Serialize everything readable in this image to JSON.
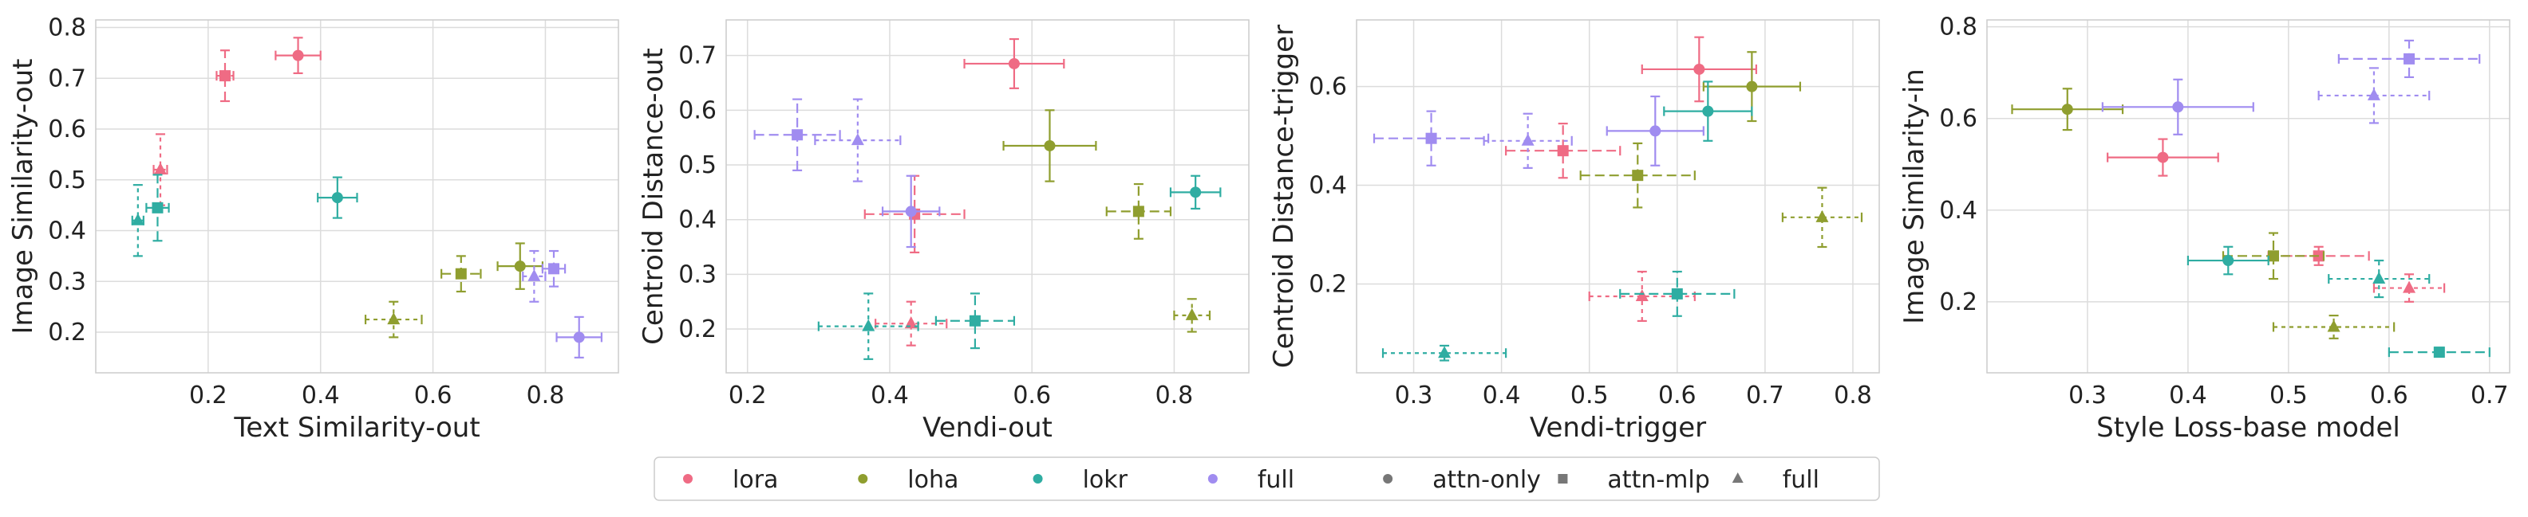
{
  "colors": {
    "lora": "#ef6b84",
    "loha": "#8f9e2f",
    "lokr": "#2fada2",
    "full": "#a08cf0",
    "neutral": "#777777"
  },
  "legend": {
    "entries": [
      {
        "label": "lora",
        "marker": "circle",
        "color_key": "lora"
      },
      {
        "label": "loha",
        "marker": "circle",
        "color_key": "loha"
      },
      {
        "label": "lokr",
        "marker": "circle",
        "color_key": "lokr"
      },
      {
        "label": "full",
        "marker": "circle",
        "color_key": "full"
      },
      {
        "label": "attn-only",
        "marker": "circle",
        "color_key": "neutral"
      },
      {
        "label": "attn-mlp",
        "marker": "square",
        "color_key": "neutral"
      },
      {
        "label": "full",
        "marker": "triangle",
        "color_key": "neutral"
      }
    ],
    "placement": "bottom-center"
  },
  "chart_data": [
    {
      "type": "scatter",
      "xlabel": "Text Similarity-out",
      "ylabel": "Image Similarity-out",
      "xlim": [
        0.0,
        0.93
      ],
      "ylim": [
        0.12,
        0.815
      ],
      "xticks": [
        "0.2",
        "0.4",
        "0.6",
        "0.8"
      ],
      "yticks": [
        "0.2",
        "0.3",
        "0.4",
        "0.5",
        "0.6",
        "0.7",
        "0.8"
      ],
      "grid": true,
      "points": [
        {
          "method": "lora",
          "marker": "circle",
          "x": 0.36,
          "y": 0.745,
          "xerr": 0.04,
          "yerr": 0.035
        },
        {
          "method": "lora",
          "marker": "square",
          "x": 0.23,
          "y": 0.705,
          "xerr": 0.015,
          "yerr": 0.05
        },
        {
          "method": "lora",
          "marker": "triangle",
          "x": 0.115,
          "y": 0.52,
          "xerr": 0.012,
          "yerr": 0.07
        },
        {
          "method": "loha",
          "marker": "circle",
          "x": 0.755,
          "y": 0.33,
          "xerr": 0.04,
          "yerr": 0.045
        },
        {
          "method": "loha",
          "marker": "square",
          "x": 0.65,
          "y": 0.315,
          "xerr": 0.035,
          "yerr": 0.035
        },
        {
          "method": "loha",
          "marker": "triangle",
          "x": 0.53,
          "y": 0.225,
          "xerr": 0.05,
          "yerr": 0.035
        },
        {
          "method": "lokr",
          "marker": "circle",
          "x": 0.43,
          "y": 0.465,
          "xerr": 0.035,
          "yerr": 0.04
        },
        {
          "method": "lokr",
          "marker": "square",
          "x": 0.11,
          "y": 0.445,
          "xerr": 0.02,
          "yerr": 0.065
        },
        {
          "method": "lokr",
          "marker": "triangle",
          "x": 0.075,
          "y": 0.42,
          "xerr": 0.01,
          "yerr": 0.07
        },
        {
          "method": "full",
          "marker": "circle",
          "x": 0.86,
          "y": 0.19,
          "xerr": 0.04,
          "yerr": 0.04
        },
        {
          "method": "full",
          "marker": "square",
          "x": 0.815,
          "y": 0.325,
          "xerr": 0.02,
          "yerr": 0.035
        },
        {
          "method": "full",
          "marker": "triangle",
          "x": 0.78,
          "y": 0.31,
          "xerr": 0.02,
          "yerr": 0.05
        }
      ]
    },
    {
      "type": "scatter",
      "xlabel": "Vendi-out",
      "ylabel": "Centroid Distance-out",
      "xlim": [
        0.17,
        0.905
      ],
      "ylim": [
        0.12,
        0.765
      ],
      "xticks": [
        "0.2",
        "0.4",
        "0.6",
        "0.8"
      ],
      "yticks": [
        "0.2",
        "0.3",
        "0.4",
        "0.5",
        "0.6",
        "0.7"
      ],
      "grid": true,
      "points": [
        {
          "method": "lora",
          "marker": "circle",
          "x": 0.575,
          "y": 0.685,
          "xerr": 0.07,
          "yerr": 0.045
        },
        {
          "method": "lora",
          "marker": "square",
          "x": 0.435,
          "y": 0.41,
          "xerr": 0.07,
          "yerr": 0.07
        },
        {
          "method": "lora",
          "marker": "triangle",
          "x": 0.43,
          "y": 0.21,
          "xerr": 0.05,
          "yerr": 0.04
        },
        {
          "method": "loha",
          "marker": "circle",
          "x": 0.625,
          "y": 0.535,
          "xerr": 0.065,
          "yerr": 0.065
        },
        {
          "method": "loha",
          "marker": "square",
          "x": 0.75,
          "y": 0.415,
          "xerr": 0.045,
          "yerr": 0.05
        },
        {
          "method": "loha",
          "marker": "triangle",
          "x": 0.825,
          "y": 0.225,
          "xerr": 0.025,
          "yerr": 0.03
        },
        {
          "method": "lokr",
          "marker": "circle",
          "x": 0.83,
          "y": 0.45,
          "xerr": 0.035,
          "yerr": 0.03
        },
        {
          "method": "lokr",
          "marker": "square",
          "x": 0.52,
          "y": 0.215,
          "xerr": 0.055,
          "yerr": 0.05
        },
        {
          "method": "lokr",
          "marker": "triangle",
          "x": 0.37,
          "y": 0.205,
          "xerr": 0.07,
          "yerr": 0.06
        },
        {
          "method": "full",
          "marker": "circle",
          "x": 0.43,
          "y": 0.415,
          "xerr": 0.04,
          "yerr": 0.065
        },
        {
          "method": "full",
          "marker": "square",
          "x": 0.27,
          "y": 0.555,
          "xerr": 0.06,
          "yerr": 0.065
        },
        {
          "method": "full",
          "marker": "triangle",
          "x": 0.355,
          "y": 0.545,
          "xerr": 0.06,
          "yerr": 0.075
        }
      ]
    },
    {
      "type": "scatter",
      "xlabel": "Vendi-trigger",
      "ylabel": "Centroid Distance-trigger",
      "xlim": [
        0.235,
        0.83
      ],
      "ylim": [
        0.02,
        0.735
      ],
      "xticks": [
        "0.3",
        "0.4",
        "0.5",
        "0.6",
        "0.7",
        "0.8"
      ],
      "yticks": [
        "0.2",
        "0.4",
        "0.6"
      ],
      "grid": true,
      "points": [
        {
          "method": "lora",
          "marker": "circle",
          "x": 0.625,
          "y": 0.635,
          "xerr": 0.065,
          "yerr": 0.065
        },
        {
          "method": "lora",
          "marker": "square",
          "x": 0.47,
          "y": 0.47,
          "xerr": 0.065,
          "yerr": 0.055
        },
        {
          "method": "lora",
          "marker": "triangle",
          "x": 0.56,
          "y": 0.175,
          "xerr": 0.06,
          "yerr": 0.05
        },
        {
          "method": "loha",
          "marker": "circle",
          "x": 0.685,
          "y": 0.6,
          "xerr": 0.055,
          "yerr": 0.07
        },
        {
          "method": "loha",
          "marker": "square",
          "x": 0.555,
          "y": 0.42,
          "xerr": 0.065,
          "yerr": 0.065
        },
        {
          "method": "loha",
          "marker": "triangle",
          "x": 0.765,
          "y": 0.335,
          "xerr": 0.045,
          "yerr": 0.06
        },
        {
          "method": "lokr",
          "marker": "circle",
          "x": 0.635,
          "y": 0.55,
          "xerr": 0.05,
          "yerr": 0.06
        },
        {
          "method": "lokr",
          "marker": "square",
          "x": 0.6,
          "y": 0.18,
          "xerr": 0.065,
          "yerr": 0.045
        },
        {
          "method": "lokr",
          "marker": "triangle",
          "x": 0.335,
          "y": 0.06,
          "xerr": 0.07,
          "yerr": 0.015
        },
        {
          "method": "full",
          "marker": "circle",
          "x": 0.575,
          "y": 0.51,
          "xerr": 0.055,
          "yerr": 0.07
        },
        {
          "method": "full",
          "marker": "square",
          "x": 0.32,
          "y": 0.495,
          "xerr": 0.065,
          "yerr": 0.055
        },
        {
          "method": "full",
          "marker": "triangle",
          "x": 0.43,
          "y": 0.49,
          "xerr": 0.05,
          "yerr": 0.055
        }
      ]
    },
    {
      "type": "scatter",
      "xlabel": "Style Loss-base model",
      "ylabel": "Image Similarity-in",
      "xlim": [
        0.2,
        0.72
      ],
      "ylim": [
        0.045,
        0.815
      ],
      "xticks": [
        "0.3",
        "0.4",
        "0.5",
        "0.6",
        "0.7"
      ],
      "yticks": [
        "0.2",
        "0.4",
        "0.6",
        "0.8"
      ],
      "grid": true,
      "points": [
        {
          "method": "lora",
          "marker": "circle",
          "x": 0.375,
          "y": 0.515,
          "xerr": 0.055,
          "yerr": 0.04
        },
        {
          "method": "lora",
          "marker": "square",
          "x": 0.53,
          "y": 0.3,
          "xerr": 0.05,
          "yerr": 0.02
        },
        {
          "method": "lora",
          "marker": "triangle",
          "x": 0.62,
          "y": 0.23,
          "xerr": 0.035,
          "yerr": 0.03
        },
        {
          "method": "loha",
          "marker": "circle",
          "x": 0.28,
          "y": 0.62,
          "xerr": 0.055,
          "yerr": 0.045
        },
        {
          "method": "loha",
          "marker": "square",
          "x": 0.485,
          "y": 0.3,
          "xerr": 0.05,
          "yerr": 0.05
        },
        {
          "method": "loha",
          "marker": "triangle",
          "x": 0.545,
          "y": 0.145,
          "xerr": 0.06,
          "yerr": 0.025
        },
        {
          "method": "lokr",
          "marker": "circle",
          "x": 0.44,
          "y": 0.29,
          "xerr": 0.04,
          "yerr": 0.03
        },
        {
          "method": "lokr",
          "marker": "square",
          "x": 0.65,
          "y": 0.09,
          "xerr": 0.05,
          "yerr": 0.01
        },
        {
          "method": "lokr",
          "marker": "triangle",
          "x": 0.59,
          "y": 0.25,
          "xerr": 0.05,
          "yerr": 0.04
        },
        {
          "method": "full",
          "marker": "circle",
          "x": 0.39,
          "y": 0.625,
          "xerr": 0.075,
          "yerr": 0.06
        },
        {
          "method": "full",
          "marker": "square",
          "x": 0.62,
          "y": 0.73,
          "xerr": 0.07,
          "yerr": 0.04
        },
        {
          "method": "full",
          "marker": "triangle",
          "x": 0.585,
          "y": 0.65,
          "xerr": 0.055,
          "yerr": 0.06
        }
      ]
    }
  ]
}
